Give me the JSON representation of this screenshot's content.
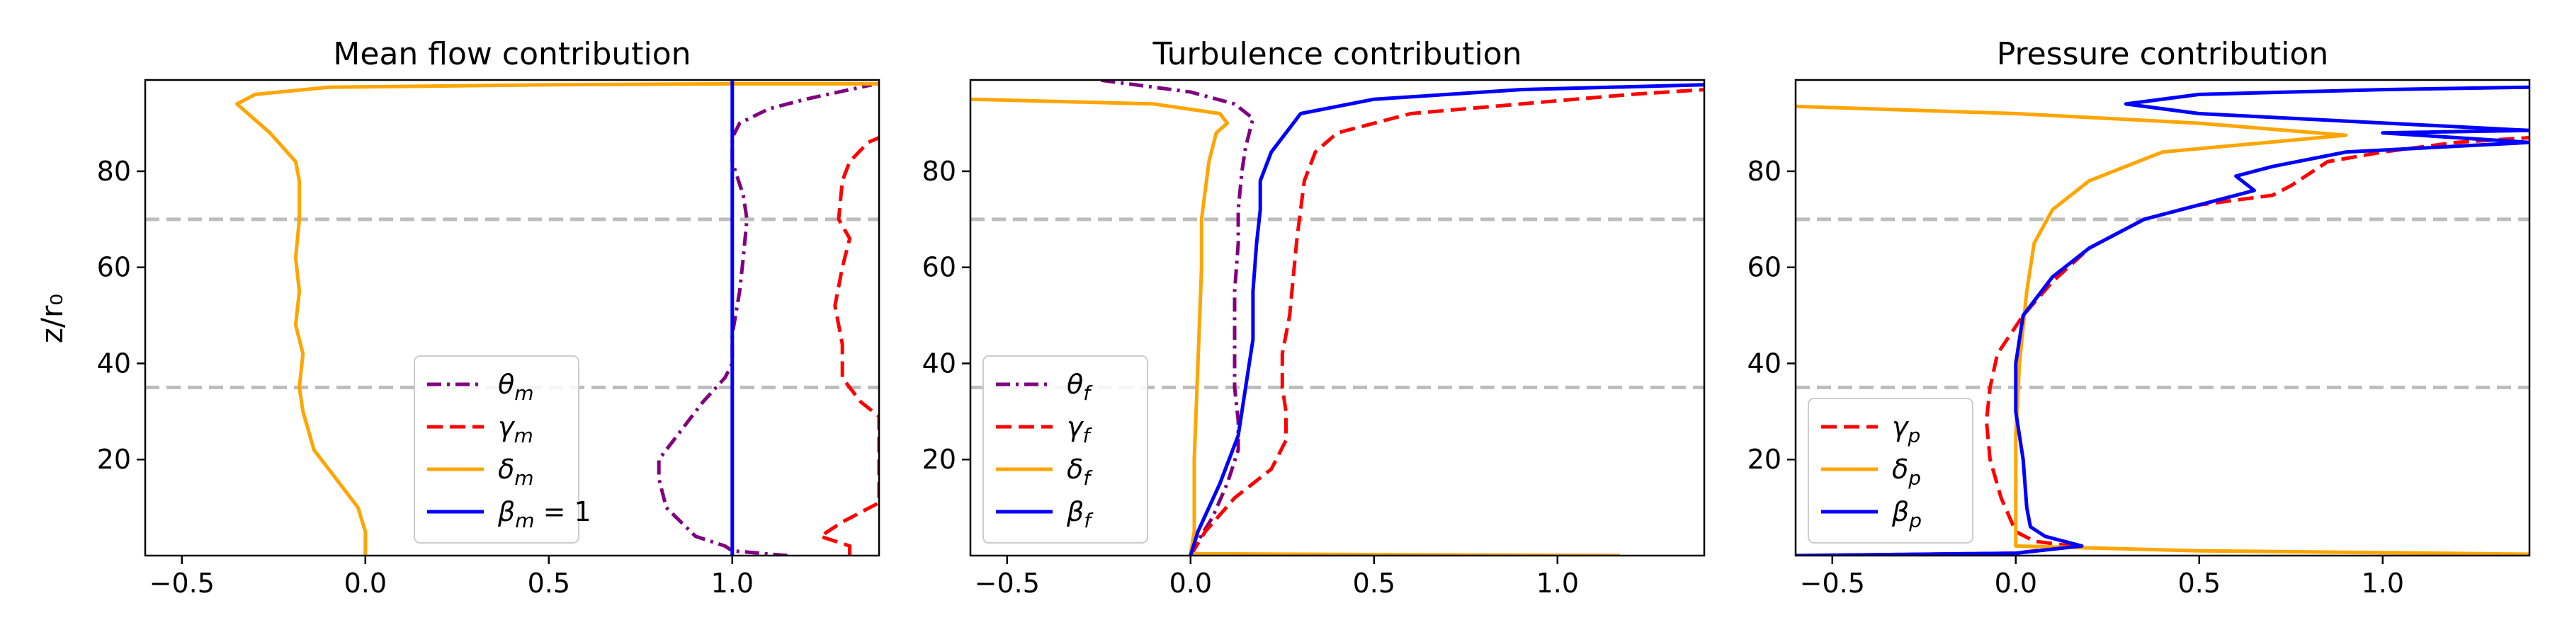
{
  "figure": {
    "ylabel": "z/r₀"
  },
  "chart_data": [
    {
      "type": "line",
      "title": "Mean flow contribution",
      "xlabel": "",
      "ylabel": "z/r₀",
      "xlim": [
        -0.6,
        1.4
      ],
      "ylim": [
        0,
        99
      ],
      "xticks": [
        -0.5,
        0.0,
        0.5,
        1.0
      ],
      "yticks": [
        20,
        40,
        60,
        80
      ],
      "hlines": [
        35,
        70
      ],
      "legend_position": "lower-center",
      "series": [
        {
          "name": "θm",
          "label_base": "θ",
          "label_sub": "m",
          "color": "#800080",
          "dash": "dashdot",
          "points": [
            [
              1.15,
              0
            ],
            [
              1.0,
              1
            ],
            [
              0.98,
              2
            ],
            [
              0.9,
              4
            ],
            [
              0.82,
              10
            ],
            [
              0.8,
              16
            ],
            [
              0.8,
              20
            ],
            [
              0.85,
              25
            ],
            [
              0.92,
              32
            ],
            [
              0.98,
              37
            ],
            [
              1.0,
              40
            ],
            [
              1.0,
              46
            ],
            [
              1.02,
              55
            ],
            [
              1.03,
              62
            ],
            [
              1.04,
              70
            ],
            [
              1.03,
              75
            ],
            [
              1.0,
              82
            ],
            [
              1.0,
              87
            ],
            [
              1.02,
              90
            ],
            [
              1.1,
              93
            ],
            [
              1.2,
              95
            ],
            [
              1.32,
              97
            ],
            [
              1.38,
              98
            ]
          ]
        },
        {
          "name": "γm",
          "label_base": "γ",
          "label_sub": "m",
          "color": "#ff0000",
          "dash": "dashed",
          "points": [
            [
              1.32,
              0
            ],
            [
              1.32,
              2
            ],
            [
              1.24,
              4
            ],
            [
              1.3,
              7
            ],
            [
              1.4,
              11
            ],
            [
              1.4,
              29
            ],
            [
              1.35,
              32
            ],
            [
              1.3,
              37
            ],
            [
              1.3,
              44
            ],
            [
              1.28,
              52
            ],
            [
              1.3,
              60
            ],
            [
              1.32,
              66
            ],
            [
              1.29,
              70
            ],
            [
              1.3,
              78
            ],
            [
              1.32,
              82
            ],
            [
              1.37,
              86
            ],
            [
              1.4,
              87
            ]
          ]
        },
        {
          "name": "δm",
          "label_base": "δ",
          "label_sub": "m",
          "color": "#ffa500",
          "dash": "solid",
          "points": [
            [
              0.0,
              0
            ],
            [
              0.0,
              5
            ],
            [
              -0.02,
              10
            ],
            [
              -0.08,
              16
            ],
            [
              -0.14,
              22
            ],
            [
              -0.17,
              30
            ],
            [
              -0.18,
              35
            ],
            [
              -0.17,
              42
            ],
            [
              -0.19,
              48
            ],
            [
              -0.18,
              55
            ],
            [
              -0.19,
              62
            ],
            [
              -0.18,
              70
            ],
            [
              -0.18,
              78
            ],
            [
              -0.19,
              82
            ],
            [
              -0.26,
              88
            ],
            [
              -0.32,
              92
            ],
            [
              -0.35,
              94
            ],
            [
              -0.3,
              96
            ],
            [
              -0.1,
              97.5
            ],
            [
              0.5,
              98
            ],
            [
              1.0,
              98.2
            ],
            [
              1.4,
              98.2
            ]
          ]
        },
        {
          "name": "βm = 1",
          "label_base": "β",
          "label_sub": "m",
          "label_suffix": " = 1",
          "color": "#0000ff",
          "dash": "solid",
          "points": [
            [
              1.0,
              0
            ],
            [
              1.0,
              99
            ]
          ]
        }
      ]
    },
    {
      "type": "line",
      "title": "Turbulence contribution",
      "xlabel": "",
      "ylabel": "",
      "xlim": [
        -0.6,
        1.4
      ],
      "ylim": [
        0,
        99
      ],
      "xticks": [
        -0.5,
        0.0,
        0.5,
        1.0
      ],
      "yticks": [
        20,
        40,
        60,
        80
      ],
      "hlines": [
        35,
        70
      ],
      "legend_position": "lower-left",
      "series": [
        {
          "name": "θf",
          "label_base": "θ",
          "label_sub": "f",
          "color": "#800080",
          "dash": "dashdot",
          "points": [
            [
              0.0,
              0
            ],
            [
              0.02,
              3
            ],
            [
              0.06,
              8
            ],
            [
              0.1,
              15
            ],
            [
              0.13,
              22
            ],
            [
              0.13,
              28
            ],
            [
              0.12,
              35
            ],
            [
              0.12,
              45
            ],
            [
              0.12,
              55
            ],
            [
              0.13,
              65
            ],
            [
              0.13,
              72
            ],
            [
              0.14,
              80
            ],
            [
              0.15,
              85
            ],
            [
              0.16,
              88
            ],
            [
              0.17,
              91
            ],
            [
              0.12,
              94
            ],
            [
              0.0,
              96.5
            ],
            [
              -0.2,
              98.5
            ],
            [
              -0.25,
              99
            ]
          ]
        },
        {
          "name": "γf",
          "label_base": "γ",
          "label_sub": "f",
          "color": "#ff0000",
          "dash": "dashed",
          "points": [
            [
              0.0,
              0
            ],
            [
              0.04,
              5
            ],
            [
              0.12,
              12
            ],
            [
              0.22,
              18
            ],
            [
              0.26,
              24
            ],
            [
              0.26,
              30
            ],
            [
              0.25,
              35
            ],
            [
              0.25,
              42
            ],
            [
              0.27,
              50
            ],
            [
              0.28,
              58
            ],
            [
              0.29,
              66
            ],
            [
              0.3,
              72
            ],
            [
              0.31,
              78
            ],
            [
              0.34,
              84
            ],
            [
              0.4,
              88
            ],
            [
              0.6,
              92
            ],
            [
              0.9,
              94
            ],
            [
              1.2,
              96
            ],
            [
              1.4,
              97
            ]
          ]
        },
        {
          "name": "δf",
          "label_base": "δ",
          "label_sub": "f",
          "color": "#ffa500",
          "dash": "solid",
          "points": [
            [
              1.17,
              0
            ],
            [
              0.5,
              0.2
            ],
            [
              0.0,
              0.4
            ],
            [
              0.01,
              5
            ],
            [
              0.01,
              20
            ],
            [
              0.02,
              40
            ],
            [
              0.03,
              60
            ],
            [
              0.03,
              70
            ],
            [
              0.05,
              82
            ],
            [
              0.07,
              88
            ],
            [
              0.1,
              90
            ],
            [
              0.08,
              92
            ],
            [
              -0.1,
              94
            ],
            [
              -0.6,
              95
            ]
          ]
        },
        {
          "name": "βf",
          "label_base": "β",
          "label_sub": "f",
          "color": "#0000ff",
          "dash": "solid",
          "points": [
            [
              0.0,
              0
            ],
            [
              0.02,
              5
            ],
            [
              0.08,
              15
            ],
            [
              0.13,
              25
            ],
            [
              0.14,
              30
            ],
            [
              0.15,
              35
            ],
            [
              0.17,
              45
            ],
            [
              0.17,
              55
            ],
            [
              0.18,
              65
            ],
            [
              0.19,
              72
            ],
            [
              0.19,
              78
            ],
            [
              0.22,
              84
            ],
            [
              0.26,
              88
            ],
            [
              0.3,
              92
            ],
            [
              0.5,
              95
            ],
            [
              0.9,
              97
            ],
            [
              1.4,
              98
            ]
          ]
        }
      ]
    },
    {
      "type": "line",
      "title": "Pressure contribution",
      "xlabel": "",
      "ylabel": "",
      "xlim": [
        -0.6,
        1.4
      ],
      "ylim": [
        0,
        99
      ],
      "xticks": [
        -0.5,
        0.0,
        0.5,
        1.0
      ],
      "yticks": [
        20,
        40,
        60,
        80
      ],
      "hlines": [
        35,
        70
      ],
      "legend_position": "lower-left",
      "series": [
        {
          "name": "γp",
          "label_base": "γ",
          "label_sub": "p",
          "color": "#ff0000",
          "dash": "dashed",
          "points": [
            [
              -0.6,
              0
            ],
            [
              0.0,
              0.5
            ],
            [
              0.15,
              2
            ],
            [
              0.05,
              3
            ],
            [
              0.0,
              5
            ],
            [
              -0.04,
              12
            ],
            [
              -0.07,
              20
            ],
            [
              -0.08,
              28
            ],
            [
              -0.07,
              35
            ],
            [
              -0.05,
              42
            ],
            [
              0.02,
              50
            ],
            [
              0.1,
              57
            ],
            [
              0.2,
              64
            ],
            [
              0.35,
              70
            ],
            [
              0.5,
              73
            ],
            [
              0.7,
              75
            ],
            [
              0.75,
              77
            ],
            [
              0.85,
              82
            ],
            [
              1.0,
              84
            ],
            [
              1.2,
              86
            ],
            [
              1.4,
              87
            ]
          ]
        },
        {
          "name": "δp",
          "label_base": "δ",
          "label_sub": "p",
          "color": "#ffa500",
          "dash": "solid",
          "points": [
            [
              1.4,
              0.3
            ],
            [
              0.5,
              1
            ],
            [
              0.0,
              2
            ],
            [
              0.0,
              4
            ],
            [
              0.0,
              25
            ],
            [
              0.01,
              40
            ],
            [
              0.03,
              55
            ],
            [
              0.05,
              65
            ],
            [
              0.1,
              72
            ],
            [
              0.2,
              78
            ],
            [
              0.4,
              84
            ],
            [
              0.9,
              87.5
            ],
            [
              0.5,
              90
            ],
            [
              0.0,
              92
            ],
            [
              -0.6,
              93.5
            ]
          ]
        },
        {
          "name": "βp",
          "label_base": "β",
          "label_sub": "p",
          "color": "#0000ff",
          "dash": "solid",
          "points": [
            [
              -0.6,
              0
            ],
            [
              0.0,
              0.5
            ],
            [
              0.18,
              2
            ],
            [
              0.08,
              4
            ],
            [
              0.04,
              6
            ],
            [
              0.03,
              10
            ],
            [
              0.02,
              20
            ],
            [
              0.0,
              30
            ],
            [
              0.0,
              40
            ],
            [
              0.02,
              50
            ],
            [
              0.1,
              58
            ],
            [
              0.2,
              64
            ],
            [
              0.35,
              70
            ],
            [
              0.55,
              74
            ],
            [
              0.65,
              76
            ],
            [
              0.6,
              79
            ],
            [
              0.7,
              81
            ],
            [
              0.9,
              84
            ],
            [
              1.4,
              86
            ],
            [
              1.0,
              88
            ],
            [
              1.4,
              88.5
            ],
            [
              0.5,
              92
            ],
            [
              0.3,
              94
            ],
            [
              0.5,
              96
            ],
            [
              1.0,
              97
            ],
            [
              1.4,
              97.5
            ]
          ]
        }
      ]
    }
  ]
}
